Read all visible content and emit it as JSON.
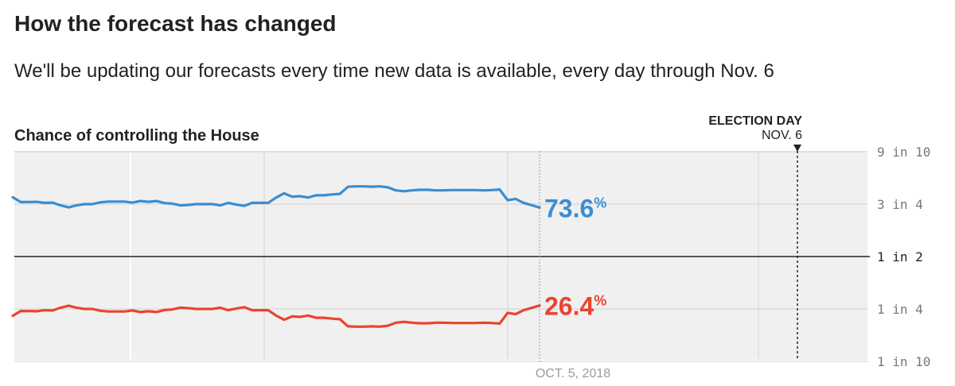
{
  "header": {
    "title": "How the forecast has changed",
    "subtitle": "We'll be updating our forecasts every time new data is available, every day through Nov. 6"
  },
  "chart_data": {
    "type": "line",
    "title": "Chance of controlling the House",
    "y_scale": "odds (logit)",
    "y_ticks": [
      {
        "value": 0.9,
        "label": "9 in 10"
      },
      {
        "value": 0.75,
        "label": "3 in 4"
      },
      {
        "value": 0.5,
        "label": "1 in 2"
      },
      {
        "value": 0.25,
        "label": "1 in 4"
      },
      {
        "value": 0.1,
        "label": "1 in 10"
      }
    ],
    "x_date_label": "OCT. 5, 2018",
    "election_day": {
      "title": "ELECTION DAY",
      "date": "NOV. 6"
    },
    "current_labels": {
      "blue": "73.6",
      "red": "26.4",
      "suffix": "%"
    },
    "series": [
      {
        "color": "#3b8dd1",
        "values": [
          0.776,
          0.758,
          0.758,
          0.759,
          0.755,
          0.756,
          0.745,
          0.737,
          0.745,
          0.75,
          0.75,
          0.757,
          0.76,
          0.76,
          0.76,
          0.756,
          0.762,
          0.759,
          0.762,
          0.754,
          0.752,
          0.745,
          0.747,
          0.75,
          0.75,
          0.75,
          0.745,
          0.755,
          0.748,
          0.743,
          0.755,
          0.755,
          0.755,
          0.775,
          0.79,
          0.778,
          0.78,
          0.775,
          0.783,
          0.783,
          0.786,
          0.788,
          0.812,
          0.813,
          0.813,
          0.812,
          0.813,
          0.81,
          0.8,
          0.797,
          0.8,
          0.802,
          0.802,
          0.8,
          0.8,
          0.801,
          0.801,
          0.801,
          0.801,
          0.8,
          0.801,
          0.803,
          0.765,
          0.77,
          0.755,
          0.746,
          0.736
        ]
      },
      {
        "color": "#e9442e",
        "values": [
          0.224,
          0.242,
          0.242,
          0.241,
          0.245,
          0.244,
          0.255,
          0.263,
          0.255,
          0.25,
          0.25,
          0.243,
          0.24,
          0.24,
          0.24,
          0.244,
          0.238,
          0.241,
          0.238,
          0.246,
          0.248,
          0.255,
          0.253,
          0.25,
          0.25,
          0.25,
          0.255,
          0.245,
          0.252,
          0.257,
          0.245,
          0.245,
          0.245,
          0.225,
          0.21,
          0.222,
          0.22,
          0.225,
          0.217,
          0.217,
          0.214,
          0.212,
          0.188,
          0.187,
          0.187,
          0.188,
          0.187,
          0.19,
          0.2,
          0.203,
          0.2,
          0.198,
          0.198,
          0.2,
          0.2,
          0.199,
          0.199,
          0.199,
          0.199,
          0.2,
          0.199,
          0.197,
          0.235,
          0.23,
          0.245,
          0.254,
          0.264
        ]
      }
    ]
  }
}
